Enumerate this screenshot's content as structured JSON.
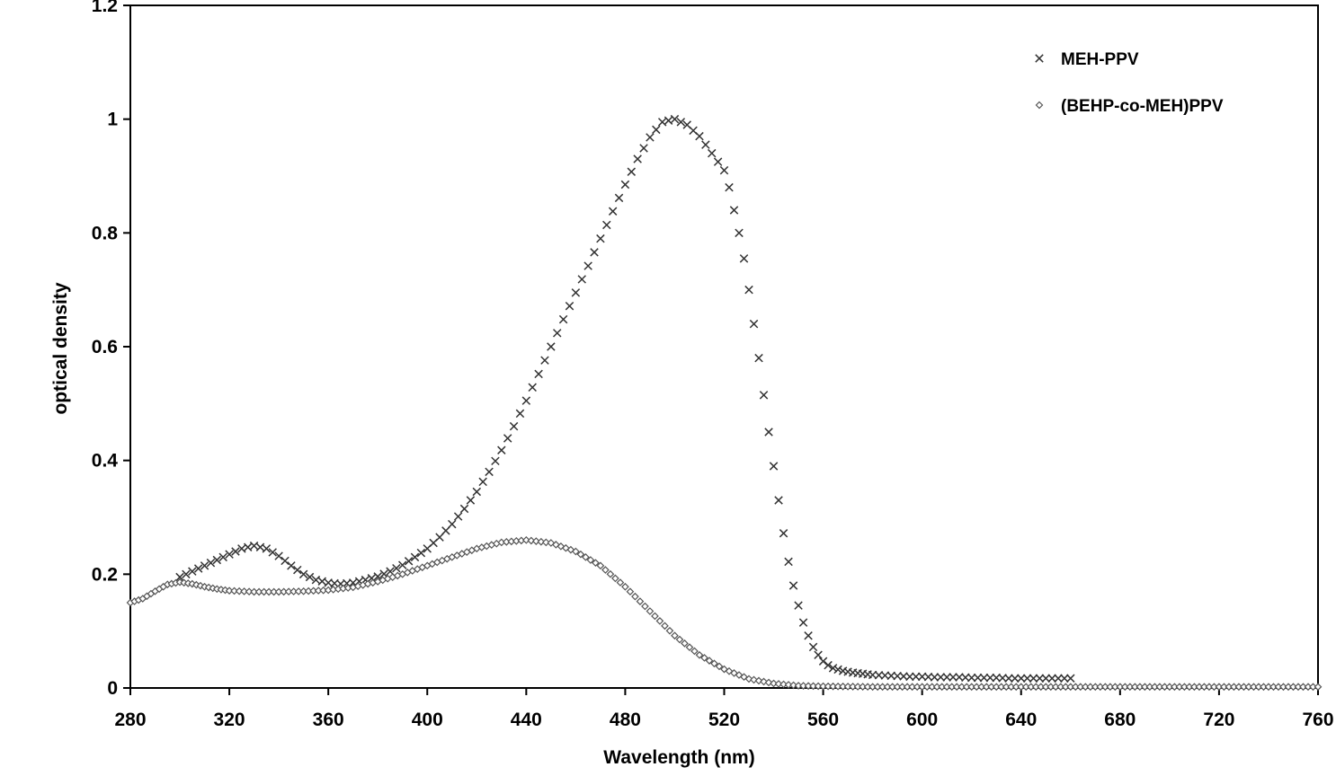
{
  "chart_data": {
    "type": "scatter",
    "title": "",
    "xlabel": "Wavelength (nm)",
    "ylabel": "optical density",
    "xlim": [
      280,
      760
    ],
    "ylim": [
      0,
      1.2
    ],
    "xticks": [
      280,
      320,
      360,
      400,
      440,
      480,
      520,
      560,
      600,
      640,
      680,
      720,
      760
    ],
    "yticks": [
      0,
      0.2,
      0.4,
      0.6,
      0.8,
      1,
      1.2
    ],
    "ytick_labels": [
      "0",
      "0.2",
      "0.4",
      "0.6",
      "0.8",
      "1",
      "1.2"
    ],
    "grid": false,
    "legend_position": "top-right",
    "series": [
      {
        "name": "MEH-PPV",
        "marker": "x",
        "color": "#333333",
        "points": [
          [
            300,
            0.195
          ],
          [
            305,
            0.205
          ],
          [
            310,
            0.215
          ],
          [
            315,
            0.225
          ],
          [
            320,
            0.235
          ],
          [
            325,
            0.245
          ],
          [
            330,
            0.25
          ],
          [
            335,
            0.245
          ],
          [
            340,
            0.232
          ],
          [
            345,
            0.215
          ],
          [
            350,
            0.2
          ],
          [
            355,
            0.19
          ],
          [
            360,
            0.185
          ],
          [
            365,
            0.183
          ],
          [
            370,
            0.185
          ],
          [
            375,
            0.19
          ],
          [
            380,
            0.196
          ],
          [
            385,
            0.205
          ],
          [
            390,
            0.216
          ],
          [
            395,
            0.23
          ],
          [
            400,
            0.245
          ],
          [
            405,
            0.265
          ],
          [
            410,
            0.288
          ],
          [
            415,
            0.315
          ],
          [
            420,
            0.345
          ],
          [
            425,
            0.38
          ],
          [
            430,
            0.418
          ],
          [
            435,
            0.46
          ],
          [
            440,
            0.505
          ],
          [
            445,
            0.552
          ],
          [
            450,
            0.6
          ],
          [
            455,
            0.648
          ],
          [
            460,
            0.695
          ],
          [
            465,
            0.742
          ],
          [
            470,
            0.79
          ],
          [
            475,
            0.838
          ],
          [
            480,
            0.885
          ],
          [
            485,
            0.93
          ],
          [
            490,
            0.968
          ],
          [
            495,
            0.995
          ],
          [
            500,
            1.0
          ],
          [
            505,
            0.99
          ],
          [
            510,
            0.97
          ],
          [
            515,
            0.94
          ],
          [
            520,
            0.91
          ],
          [
            522,
            0.88
          ],
          [
            524,
            0.84
          ],
          [
            526,
            0.8
          ],
          [
            528,
            0.755
          ],
          [
            530,
            0.7
          ],
          [
            532,
            0.64
          ],
          [
            534,
            0.58
          ],
          [
            536,
            0.515
          ],
          [
            538,
            0.45
          ],
          [
            540,
            0.39
          ],
          [
            542,
            0.33
          ],
          [
            544,
            0.272
          ],
          [
            546,
            0.222
          ],
          [
            548,
            0.18
          ],
          [
            550,
            0.145
          ],
          [
            552,
            0.115
          ],
          [
            554,
            0.092
          ],
          [
            556,
            0.072
          ],
          [
            558,
            0.058
          ],
          [
            560,
            0.047
          ],
          [
            562,
            0.04
          ],
          [
            564,
            0.035
          ],
          [
            568,
            0.03
          ],
          [
            572,
            0.027
          ],
          [
            576,
            0.025
          ],
          [
            580,
            0.023
          ],
          [
            585,
            0.022
          ],
          [
            590,
            0.021
          ],
          [
            595,
            0.02
          ],
          [
            600,
            0.02
          ],
          [
            605,
            0.019
          ],
          [
            610,
            0.019
          ],
          [
            615,
            0.019
          ],
          [
            620,
            0.018
          ],
          [
            625,
            0.018
          ],
          [
            630,
            0.018
          ],
          [
            635,
            0.017
          ],
          [
            640,
            0.017
          ],
          [
            645,
            0.017
          ],
          [
            650,
            0.017
          ],
          [
            655,
            0.017
          ],
          [
            660,
            0.017
          ]
        ]
      },
      {
        "name": "(BEHP-co-MEH)PPV",
        "marker": "diamond",
        "color": "#555555",
        "points": [
          [
            280,
            0.15
          ],
          [
            285,
            0.157
          ],
          [
            290,
            0.17
          ],
          [
            295,
            0.182
          ],
          [
            300,
            0.186
          ],
          [
            305,
            0.183
          ],
          [
            310,
            0.178
          ],
          [
            315,
            0.174
          ],
          [
            320,
            0.171
          ],
          [
            330,
            0.169
          ],
          [
            340,
            0.169
          ],
          [
            350,
            0.17
          ],
          [
            360,
            0.172
          ],
          [
            370,
            0.177
          ],
          [
            380,
            0.187
          ],
          [
            390,
            0.2
          ],
          [
            400,
            0.215
          ],
          [
            410,
            0.23
          ],
          [
            420,
            0.245
          ],
          [
            430,
            0.256
          ],
          [
            440,
            0.26
          ],
          [
            450,
            0.255
          ],
          [
            460,
            0.24
          ],
          [
            470,
            0.215
          ],
          [
            480,
            0.178
          ],
          [
            490,
            0.135
          ],
          [
            500,
            0.092
          ],
          [
            510,
            0.058
          ],
          [
            520,
            0.033
          ],
          [
            530,
            0.016
          ],
          [
            540,
            0.008
          ],
          [
            550,
            0.004
          ],
          [
            560,
            0.003
          ],
          [
            580,
            0.002
          ],
          [
            620,
            0.002
          ],
          [
            680,
            0.002
          ],
          [
            760,
            0.002
          ]
        ]
      }
    ]
  }
}
